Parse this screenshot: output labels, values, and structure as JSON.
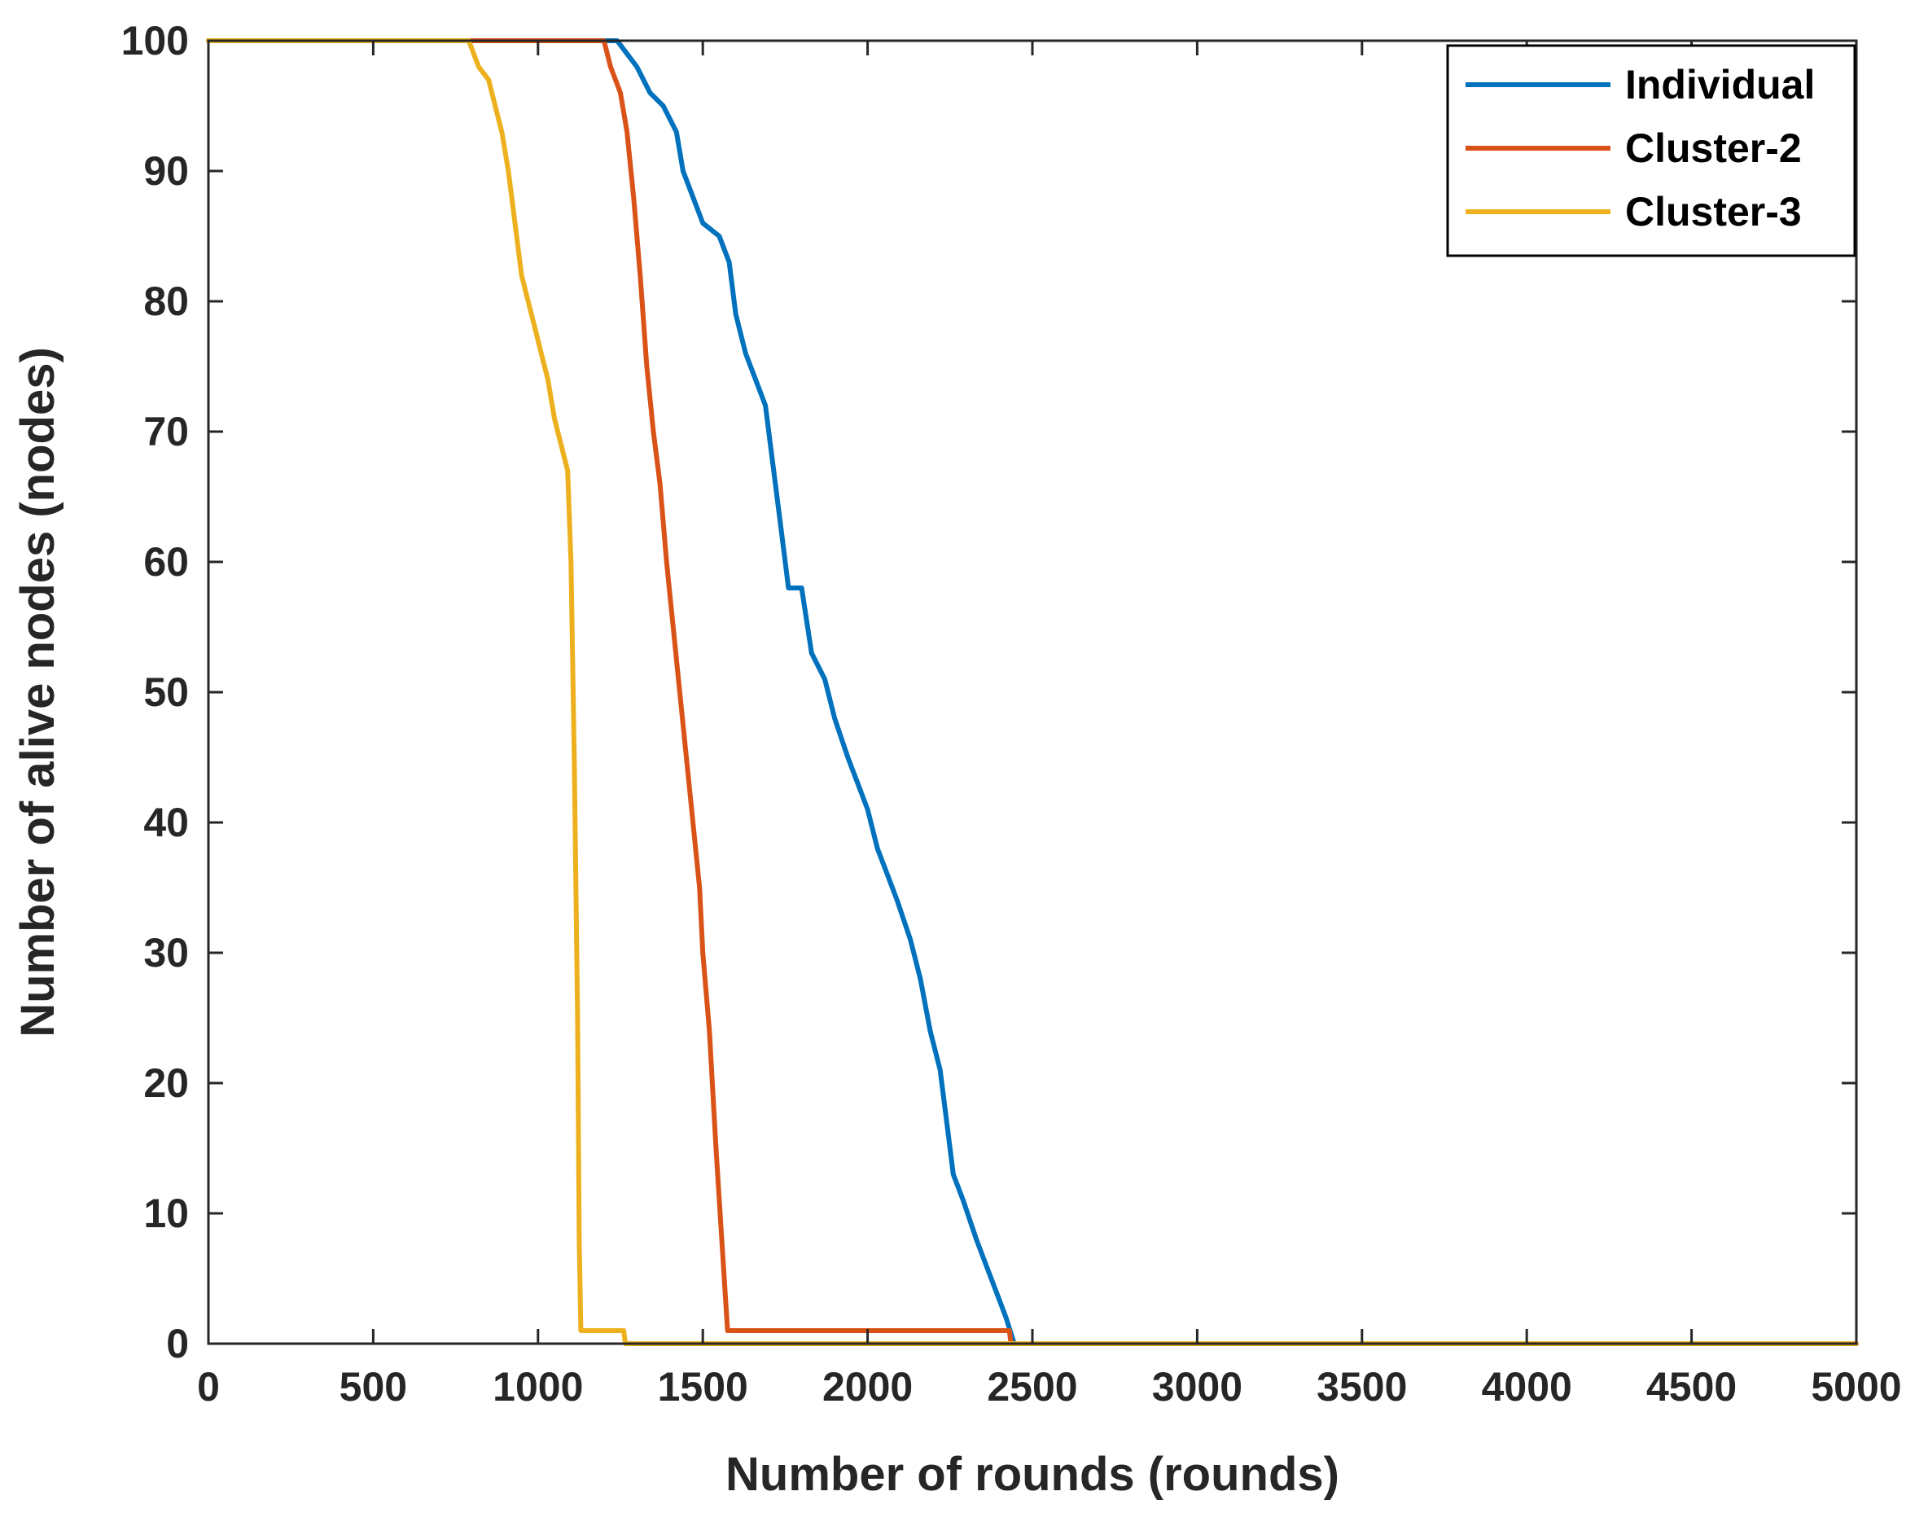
{
  "chart_data": {
    "type": "line",
    "title": "",
    "xlabel": "Number of rounds (rounds)",
    "ylabel": "Number of alive nodes (nodes)",
    "xlim": [
      0,
      5000
    ],
    "ylim": [
      0,
      100
    ],
    "xticks": [
      "0",
      "500",
      "1000",
      "1500",
      "2000",
      "2500",
      "3000",
      "3500",
      "4000",
      "4500",
      "5000"
    ],
    "yticks": [
      "0",
      "10",
      "20",
      "30",
      "40",
      "50",
      "60",
      "70",
      "80",
      "90",
      "100"
    ],
    "grid": false,
    "legend_position": "top-right",
    "series": [
      {
        "name": "Individual",
        "color": "#0072BD",
        "points": [
          [
            0,
            100
          ],
          [
            1240,
            100
          ],
          [
            1300,
            98
          ],
          [
            1340,
            96
          ],
          [
            1380,
            95
          ],
          [
            1420,
            93
          ],
          [
            1440,
            90
          ],
          [
            1470,
            88
          ],
          [
            1500,
            86
          ],
          [
            1550,
            85
          ],
          [
            1580,
            83
          ],
          [
            1600,
            79
          ],
          [
            1630,
            76
          ],
          [
            1660,
            74
          ],
          [
            1690,
            72
          ],
          [
            1720,
            66
          ],
          [
            1740,
            62
          ],
          [
            1760,
            58
          ],
          [
            1800,
            58
          ],
          [
            1830,
            53
          ],
          [
            1870,
            51
          ],
          [
            1900,
            48
          ],
          [
            1940,
            45
          ],
          [
            1970,
            43
          ],
          [
            2000,
            41
          ],
          [
            2030,
            38
          ],
          [
            2060,
            36
          ],
          [
            2090,
            34
          ],
          [
            2130,
            31
          ],
          [
            2160,
            28
          ],
          [
            2190,
            24
          ],
          [
            2220,
            21
          ],
          [
            2240,
            17
          ],
          [
            2260,
            13
          ],
          [
            2290,
            11
          ],
          [
            2330,
            8
          ],
          [
            2360,
            6
          ],
          [
            2390,
            4
          ],
          [
            2420,
            2
          ],
          [
            2445,
            0
          ],
          [
            5000,
            0
          ]
        ]
      },
      {
        "name": "Cluster-2",
        "color": "#D95319",
        "points": [
          [
            0,
            100
          ],
          [
            1200,
            100
          ],
          [
            1220,
            98
          ],
          [
            1250,
            96
          ],
          [
            1270,
            93
          ],
          [
            1290,
            88
          ],
          [
            1310,
            82
          ],
          [
            1330,
            75
          ],
          [
            1350,
            70
          ],
          [
            1370,
            66
          ],
          [
            1390,
            60
          ],
          [
            1410,
            55
          ],
          [
            1430,
            50
          ],
          [
            1450,
            45
          ],
          [
            1470,
            40
          ],
          [
            1490,
            35
          ],
          [
            1500,
            30
          ],
          [
            1520,
            24
          ],
          [
            1540,
            15
          ],
          [
            1560,
            7
          ],
          [
            1575,
            1
          ],
          [
            2430,
            1
          ],
          [
            2435,
            0
          ],
          [
            5000,
            0
          ]
        ]
      },
      {
        "name": "Cluster-3",
        "color": "#EDB120",
        "points": [
          [
            0,
            100
          ],
          [
            790,
            100
          ],
          [
            820,
            98
          ],
          [
            850,
            97
          ],
          [
            870,
            95
          ],
          [
            890,
            93
          ],
          [
            910,
            90
          ],
          [
            930,
            86
          ],
          [
            950,
            82
          ],
          [
            970,
            80
          ],
          [
            990,
            78
          ],
          [
            1010,
            76
          ],
          [
            1030,
            74
          ],
          [
            1050,
            71
          ],
          [
            1070,
            69
          ],
          [
            1090,
            67
          ],
          [
            1100,
            60
          ],
          [
            1110,
            45
          ],
          [
            1120,
            25
          ],
          [
            1125,
            8
          ],
          [
            1130,
            1
          ],
          [
            1260,
            1
          ],
          [
            1265,
            0
          ],
          [
            5000,
            0
          ]
        ]
      }
    ]
  }
}
